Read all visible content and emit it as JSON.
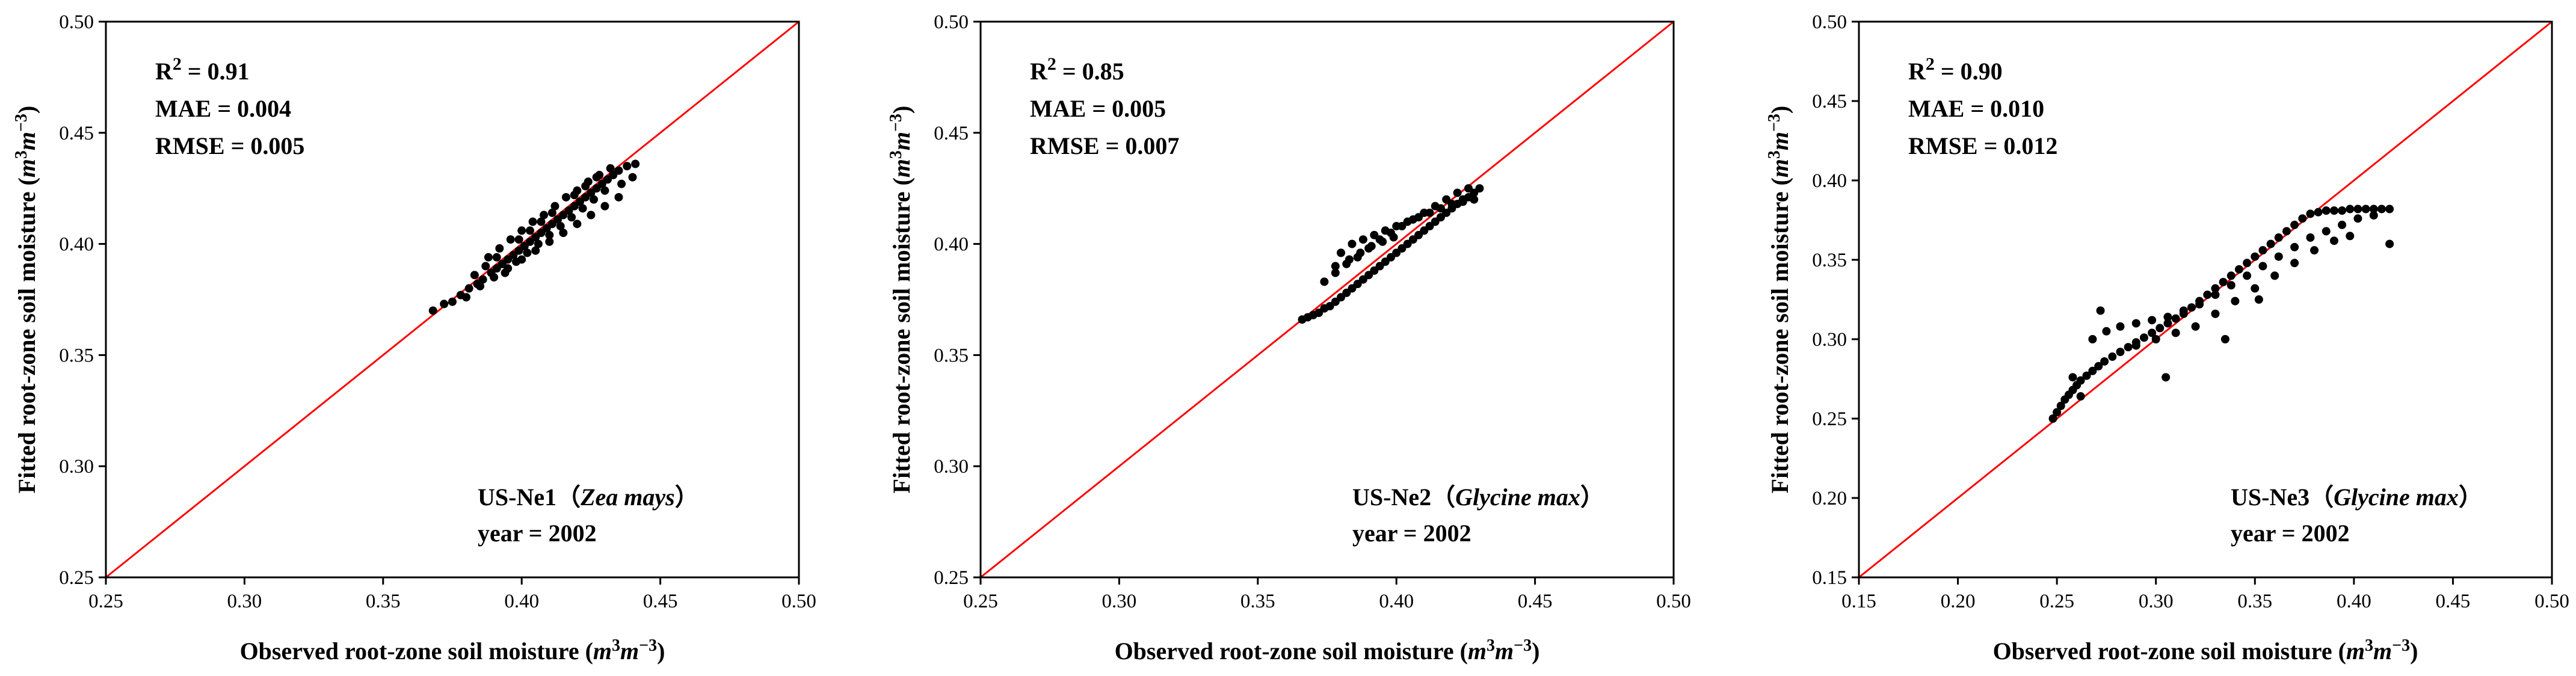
{
  "chart_data": [
    {
      "type": "scatter",
      "panel": "a",
      "xlabel": "Observed root-zone soil moisture",
      "ylabel": "Fitted root-zone soil moisture",
      "unit": {
        "base_m": "m",
        "exp_3": "3",
        "exp_neg3": "−3"
      },
      "xlim": [
        0.25,
        0.5
      ],
      "ylim": [
        0.25,
        0.5
      ],
      "xticks": [
        "0.25",
        "0.30",
        "0.35",
        "0.40",
        "0.45",
        "0.50"
      ],
      "yticks": [
        "0.25",
        "0.30",
        "0.35",
        "0.40",
        "0.45",
        "0.50"
      ],
      "reference_line": {
        "type": "1:1",
        "color": "#ff0000"
      },
      "stats": {
        "r2_label": "R",
        "r2_sup": "2",
        "r2": "= 0.91",
        "mae": "MAE = 0.004",
        "rmse": "RMSE = 0.005"
      },
      "site": {
        "name": "US-Ne1（",
        "species": "Zea mays",
        "close": "）",
        "year": "year = 2002"
      },
      "point_color": "#000000",
      "series": [
        {
          "x": [
            0.368,
            0.372,
            0.375,
            0.378,
            0.381,
            0.384,
            0.386,
            0.389,
            0.391,
            0.393,
            0.395,
            0.397,
            0.399,
            0.401,
            0.403,
            0.405,
            0.407,
            0.409,
            0.411,
            0.413,
            0.415,
            0.417,
            0.419,
            0.421,
            0.423,
            0.425,
            0.427,
            0.429,
            0.431,
            0.433,
            0.435,
            0.438,
            0.441,
            0.388,
            0.392,
            0.396,
            0.4,
            0.404,
            0.408,
            0.412,
            0.416,
            0.42,
            0.424,
            0.428,
            0.432,
            0.38,
            0.385,
            0.39,
            0.395,
            0.4,
            0.405,
            0.41,
            0.415,
            0.42,
            0.425,
            0.43,
            0.435,
            0.394,
            0.398,
            0.402,
            0.406,
            0.41,
            0.414,
            0.418,
            0.422,
            0.426,
            0.43,
            0.436,
            0.44,
            0.383,
            0.387,
            0.391,
            0.399,
            0.403,
            0.407,
            0.411,
            0.419,
            0.423,
            0.427
          ],
          "y": [
            0.37,
            0.373,
            0.374,
            0.377,
            0.38,
            0.382,
            0.384,
            0.387,
            0.389,
            0.391,
            0.393,
            0.395,
            0.397,
            0.399,
            0.401,
            0.403,
            0.405,
            0.407,
            0.409,
            0.411,
            0.413,
            0.415,
            0.417,
            0.419,
            0.421,
            0.423,
            0.425,
            0.427,
            0.429,
            0.431,
            0.433,
            0.435,
            0.436,
            0.394,
            0.398,
            0.402,
            0.406,
            0.41,
            0.413,
            0.417,
            0.421,
            0.424,
            0.428,
            0.431,
            0.434,
            0.376,
            0.381,
            0.385,
            0.389,
            0.393,
            0.397,
            0.401,
            0.405,
            0.409,
            0.413,
            0.417,
            0.421,
            0.387,
            0.392,
            0.396,
            0.4,
            0.404,
            0.408,
            0.412,
            0.416,
            0.42,
            0.424,
            0.427,
            0.43,
            0.386,
            0.39,
            0.394,
            0.402,
            0.406,
            0.41,
            0.414,
            0.422,
            0.426,
            0.43
          ]
        }
      ]
    },
    {
      "type": "scatter",
      "panel": "b",
      "xlabel": "Observed root-zone soil moisture",
      "ylabel": "Fitted root-zone soil moisture",
      "unit": {
        "base_m": "m",
        "exp_3": "3",
        "exp_neg3": "−3"
      },
      "xlim": [
        0.25,
        0.5
      ],
      "ylim": [
        0.25,
        0.5
      ],
      "xticks": [
        "0.25",
        "0.30",
        "0.35",
        "0.40",
        "0.45",
        "0.50"
      ],
      "yticks": [
        "0.25",
        "0.30",
        "0.35",
        "0.40",
        "0.45",
        "0.50"
      ],
      "reference_line": {
        "type": "1:1",
        "color": "#ff0000"
      },
      "stats": {
        "r2_label": "R",
        "r2_sup": "2",
        "r2": "= 0.85",
        "mae": "MAE = 0.005",
        "rmse": "RMSE = 0.007"
      },
      "site": {
        "name": "US-Ne2（",
        "species": "Glycine max",
        "close": "）",
        "year": "year = 2002"
      },
      "point_color": "#000000",
      "series": [
        {
          "x": [
            0.366,
            0.368,
            0.37,
            0.372,
            0.374,
            0.376,
            0.378,
            0.38,
            0.382,
            0.384,
            0.386,
            0.388,
            0.39,
            0.392,
            0.394,
            0.396,
            0.398,
            0.4,
            0.402,
            0.404,
            0.406,
            0.408,
            0.41,
            0.412,
            0.414,
            0.416,
            0.418,
            0.42,
            0.422,
            0.424,
            0.426,
            0.428,
            0.43,
            0.374,
            0.378,
            0.382,
            0.386,
            0.39,
            0.394,
            0.398,
            0.402,
            0.406,
            0.41,
            0.414,
            0.418,
            0.422,
            0.426,
            0.38,
            0.384,
            0.388,
            0.392,
            0.396,
            0.4,
            0.404,
            0.408,
            0.412,
            0.416,
            0.42,
            0.424,
            0.428,
            0.378,
            0.383,
            0.387,
            0.391,
            0.395,
            0.399
          ],
          "y": [
            0.366,
            0.367,
            0.368,
            0.369,
            0.371,
            0.372,
            0.374,
            0.376,
            0.378,
            0.38,
            0.382,
            0.384,
            0.386,
            0.388,
            0.39,
            0.392,
            0.394,
            0.396,
            0.398,
            0.4,
            0.402,
            0.404,
            0.406,
            0.408,
            0.41,
            0.412,
            0.414,
            0.416,
            0.418,
            0.42,
            0.421,
            0.423,
            0.425,
            0.383,
            0.387,
            0.391,
            0.394,
            0.398,
            0.402,
            0.405,
            0.408,
            0.411,
            0.414,
            0.417,
            0.42,
            0.423,
            0.425,
            0.396,
            0.4,
            0.402,
            0.404,
            0.406,
            0.408,
            0.41,
            0.412,
            0.414,
            0.416,
            0.418,
            0.419,
            0.42,
            0.39,
            0.393,
            0.396,
            0.399,
            0.401,
            0.403
          ]
        }
      ]
    },
    {
      "type": "scatter",
      "panel": "c",
      "xlabel": "Observed root-zone soil moisture",
      "ylabel": "Fitted root-zone soil moisture",
      "unit": {
        "base_m": "m",
        "exp_3": "3",
        "exp_neg3": "−3"
      },
      "xlim": [
        0.15,
        0.5
      ],
      "ylim": [
        0.15,
        0.5
      ],
      "xticks": [
        "0.15",
        "0.20",
        "0.25",
        "0.30",
        "0.35",
        "0.40",
        "0.45",
        "0.50"
      ],
      "yticks": [
        "0.15",
        "0.20",
        "0.25",
        "0.30",
        "0.35",
        "0.40",
        "0.45",
        "0.50"
      ],
      "reference_line": {
        "type": "1:1",
        "color": "#ff0000"
      },
      "stats": {
        "r2_label": "R",
        "r2_sup": "2",
        "r2": "= 0.90",
        "mae": "MAE = 0.010",
        "rmse": "RMSE = 0.012"
      },
      "site": {
        "name": "US-Ne3（",
        "species": "Glycine max",
        "close": "）",
        "year": "year = 2002"
      },
      "point_color": "#000000",
      "series": [
        {
          "x": [
            0.248,
            0.25,
            0.252,
            0.254,
            0.256,
            0.258,
            0.26,
            0.262,
            0.265,
            0.268,
            0.271,
            0.274,
            0.278,
            0.282,
            0.286,
            0.29,
            0.294,
            0.298,
            0.302,
            0.306,
            0.31,
            0.314,
            0.318,
            0.322,
            0.326,
            0.33,
            0.334,
            0.338,
            0.342,
            0.346,
            0.35,
            0.354,
            0.358,
            0.362,
            0.366,
            0.37,
            0.374,
            0.378,
            0.382,
            0.386,
            0.39,
            0.394,
            0.398,
            0.402,
            0.406,
            0.41,
            0.414,
            0.418,
            0.268,
            0.275,
            0.282,
            0.29,
            0.298,
            0.306,
            0.314,
            0.322,
            0.33,
            0.338,
            0.346,
            0.354,
            0.362,
            0.37,
            0.378,
            0.386,
            0.394,
            0.402,
            0.41,
            0.29,
            0.3,
            0.31,
            0.32,
            0.33,
            0.34,
            0.35,
            0.36,
            0.37,
            0.38,
            0.39,
            0.258,
            0.262,
            0.272,
            0.305,
            0.335,
            0.352,
            0.398,
            0.418
          ],
          "y": [
            0.25,
            0.254,
            0.258,
            0.262,
            0.265,
            0.268,
            0.271,
            0.274,
            0.277,
            0.28,
            0.283,
            0.286,
            0.289,
            0.292,
            0.295,
            0.298,
            0.301,
            0.304,
            0.307,
            0.31,
            0.313,
            0.316,
            0.32,
            0.324,
            0.328,
            0.332,
            0.336,
            0.34,
            0.344,
            0.348,
            0.352,
            0.356,
            0.36,
            0.364,
            0.368,
            0.372,
            0.376,
            0.379,
            0.38,
            0.381,
            0.381,
            0.381,
            0.382,
            0.382,
            0.382,
            0.382,
            0.382,
            0.382,
            0.3,
            0.305,
            0.308,
            0.31,
            0.312,
            0.314,
            0.318,
            0.322,
            0.328,
            0.334,
            0.34,
            0.346,
            0.352,
            0.358,
            0.364,
            0.368,
            0.372,
            0.376,
            0.378,
            0.296,
            0.3,
            0.304,
            0.308,
            0.316,
            0.324,
            0.332,
            0.34,
            0.348,
            0.356,
            0.362,
            0.276,
            0.264,
            0.318,
            0.276,
            0.3,
            0.325,
            0.365,
            0.36
          ]
        }
      ]
    }
  ]
}
